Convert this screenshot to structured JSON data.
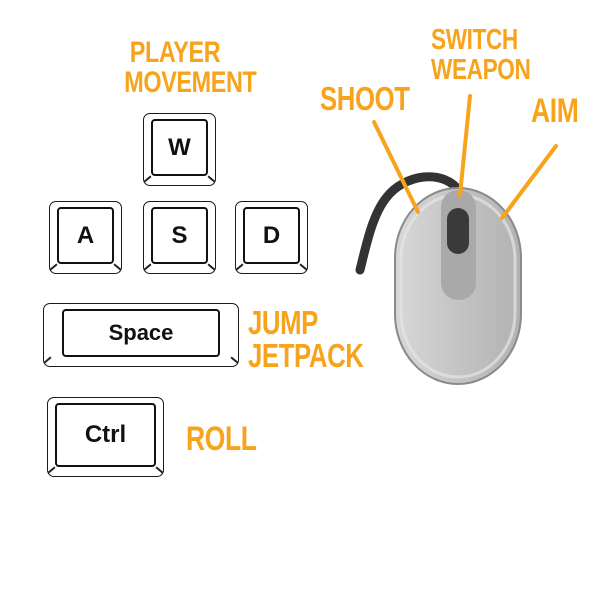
{
  "controls": {
    "movement_label": "PLAYER MOVEMENT",
    "jump_label": "JUMP\nJETPACK",
    "roll_label": "ROLL",
    "shoot_label": "SHOOT",
    "switch_weapon_label": "SWITCH\nWEAPON",
    "aim_label": "AIM"
  },
  "keys": {
    "w": "W",
    "a": "A",
    "s": "S",
    "d": "D",
    "space": "Space",
    "ctrl": "Ctrl"
  },
  "colors": {
    "accent": "#f7a31c",
    "mouse_body": "#c9c9c9",
    "mouse_wheel": "#3a3a3a",
    "cable": "#333333"
  },
  "icons": {
    "mouse": "mouse-icon"
  }
}
